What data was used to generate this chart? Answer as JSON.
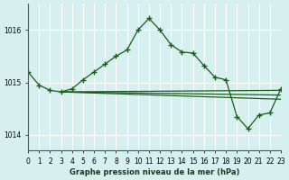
{
  "title": "Graphe pression niveau de la mer (hPa)",
  "bg_color": "#d6f0f0",
  "grid_color": "#ffffff",
  "line_color": "#1a5c1a",
  "xlim": [
    0,
    23
  ],
  "ylim": [
    1013.7,
    1016.5
  ],
  "yticks": [
    1014,
    1015,
    1016
  ],
  "xticks": [
    0,
    1,
    2,
    3,
    4,
    5,
    6,
    7,
    8,
    9,
    10,
    11,
    12,
    13,
    14,
    15,
    16,
    17,
    18,
    19,
    20,
    21,
    22,
    23
  ],
  "main_y": [
    1015.2,
    1014.95,
    1014.85,
    1014.82,
    1014.88,
    1015.05,
    1015.2,
    1015.35,
    1015.5,
    1015.62,
    1016.0,
    1016.22,
    1016.0,
    1015.72,
    1015.58,
    1015.56,
    1015.32,
    1015.1,
    1015.05,
    1014.35,
    1014.12,
    1014.38,
    1014.42,
    1014.88
  ],
  "extra_lines": [
    [
      [
        3,
        23
      ],
      [
        1014.82,
        1014.85
      ]
    ],
    [
      [
        3,
        23
      ],
      [
        1014.82,
        1014.76
      ]
    ],
    [
      [
        3,
        23
      ],
      [
        1014.82,
        1014.68
      ]
    ]
  ]
}
